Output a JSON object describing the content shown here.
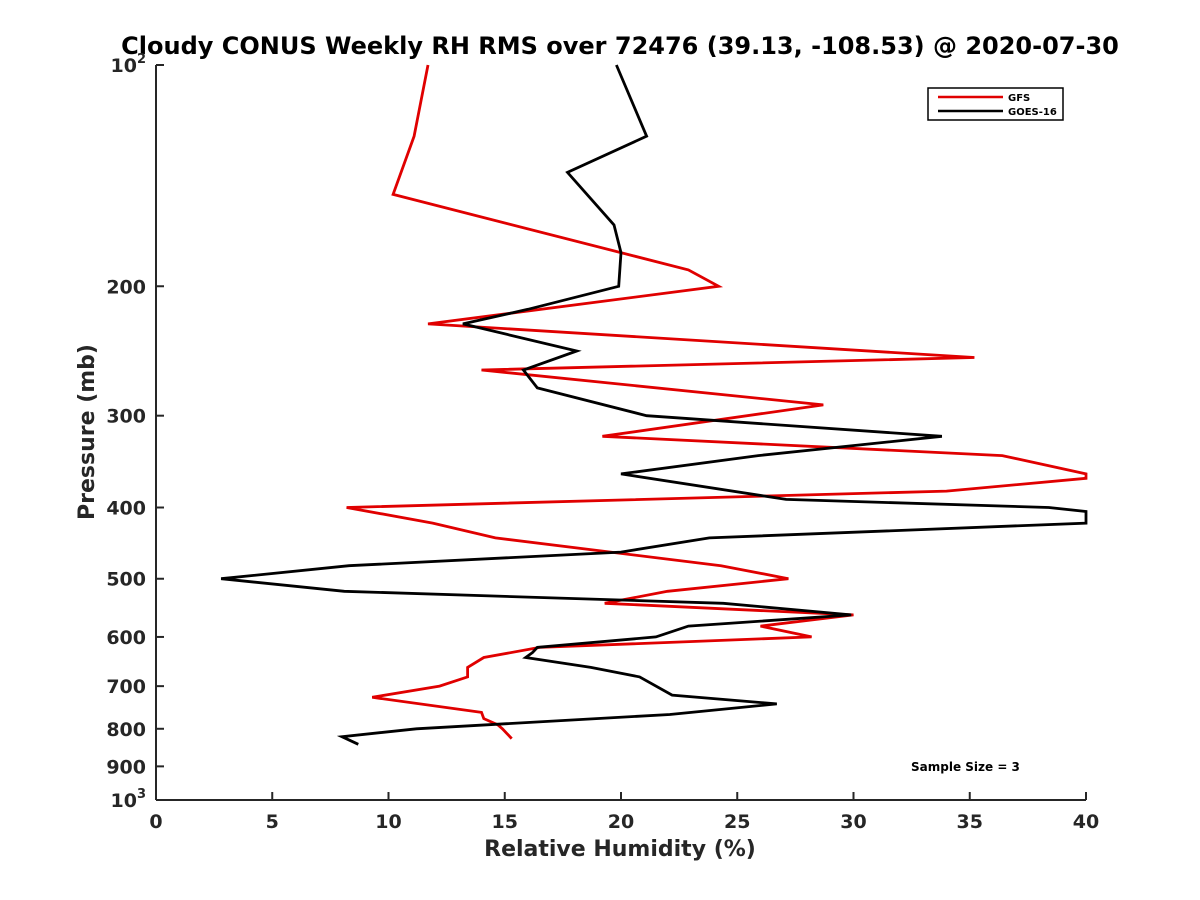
{
  "chart_data": {
    "type": "line",
    "title": "Cloudy CONUS Weekly RH RMS over 72476 (39.13, -108.53) @ 2020-07-30",
    "xlabel": "Relative Humidity (%)",
    "ylabel": "Pressure (mb)",
    "xlim": [
      0,
      40
    ],
    "ylim": [
      1000,
      100
    ],
    "yscale": "log",
    "y_reversed": true,
    "x_ticks": [
      "0",
      "5",
      "10",
      "15",
      "20",
      "25",
      "30",
      "35",
      "40"
    ],
    "y_ticks": [
      {
        "value": 100,
        "base": "10",
        "exp": "2"
      },
      {
        "value": 200,
        "label": "200"
      },
      {
        "value": 300,
        "label": "300"
      },
      {
        "value": 400,
        "label": "400"
      },
      {
        "value": 500,
        "label": "500"
      },
      {
        "value": 600,
        "label": "600"
      },
      {
        "value": 700,
        "label": "700"
      },
      {
        "value": 800,
        "label": "800"
      },
      {
        "value": 900,
        "label": "900"
      },
      {
        "value": 1000,
        "base": "10",
        "exp": "3"
      }
    ],
    "legend_position": "top-right",
    "annotation": "Sample Size = 3",
    "series": [
      {
        "name": "GFS",
        "color": "#e00000",
        "points": [
          [
            11.7,
            100
          ],
          [
            11.1,
            125
          ],
          [
            10.2,
            150
          ],
          [
            22.9,
            190
          ],
          [
            24.2,
            200
          ],
          [
            11.7,
            225
          ],
          [
            35.2,
            250
          ],
          [
            14.0,
            260
          ],
          [
            28.7,
            290
          ],
          [
            19.2,
            320
          ],
          [
            36.4,
            340
          ],
          [
            40.0,
            360
          ],
          [
            40.0,
            365
          ],
          [
            34.0,
            380
          ],
          [
            8.2,
            400
          ],
          [
            11.9,
            420
          ],
          [
            14.6,
            440
          ],
          [
            24.3,
            480
          ],
          [
            27.2,
            500
          ],
          [
            22.0,
            520
          ],
          [
            19.3,
            540
          ],
          [
            30.0,
            560
          ],
          [
            26.0,
            580
          ],
          [
            28.2,
            600
          ],
          [
            16.5,
            620
          ],
          [
            14.1,
            640
          ],
          [
            13.4,
            660
          ],
          [
            13.4,
            680
          ],
          [
            12.2,
            700
          ],
          [
            9.3,
            725
          ],
          [
            14.0,
            760
          ],
          [
            14.1,
            775
          ],
          [
            14.7,
            790
          ],
          [
            14.9,
            800
          ],
          [
            15.3,
            825
          ]
        ]
      },
      {
        "name": "GOES-16",
        "color": "#000000",
        "points": [
          [
            19.8,
            100
          ],
          [
            21.1,
            125
          ],
          [
            17.7,
            140
          ],
          [
            19.7,
            165
          ],
          [
            20.0,
            180
          ],
          [
            19.9,
            200
          ],
          [
            16.0,
            215
          ],
          [
            13.2,
            225
          ],
          [
            18.1,
            245
          ],
          [
            15.8,
            260
          ],
          [
            16.4,
            275
          ],
          [
            21.1,
            300
          ],
          [
            33.8,
            320
          ],
          [
            25.9,
            340
          ],
          [
            20.0,
            360
          ],
          [
            27.1,
            390
          ],
          [
            38.4,
            400
          ],
          [
            40.0,
            405
          ],
          [
            40.0,
            420
          ],
          [
            23.8,
            440
          ],
          [
            20.0,
            460
          ],
          [
            8.3,
            480
          ],
          [
            2.8,
            500
          ],
          [
            8.1,
            520
          ],
          [
            24.4,
            540
          ],
          [
            29.9,
            560
          ],
          [
            22.9,
            580
          ],
          [
            21.5,
            600
          ],
          [
            16.4,
            620
          ],
          [
            16.2,
            630
          ],
          [
            15.9,
            640
          ],
          [
            18.7,
            660
          ],
          [
            20.8,
            680
          ],
          [
            22.2,
            720
          ],
          [
            26.7,
            740
          ],
          [
            22.1,
            765
          ],
          [
            11.2,
            800
          ],
          [
            8.0,
            820
          ],
          [
            8.7,
            840
          ]
        ]
      }
    ]
  }
}
